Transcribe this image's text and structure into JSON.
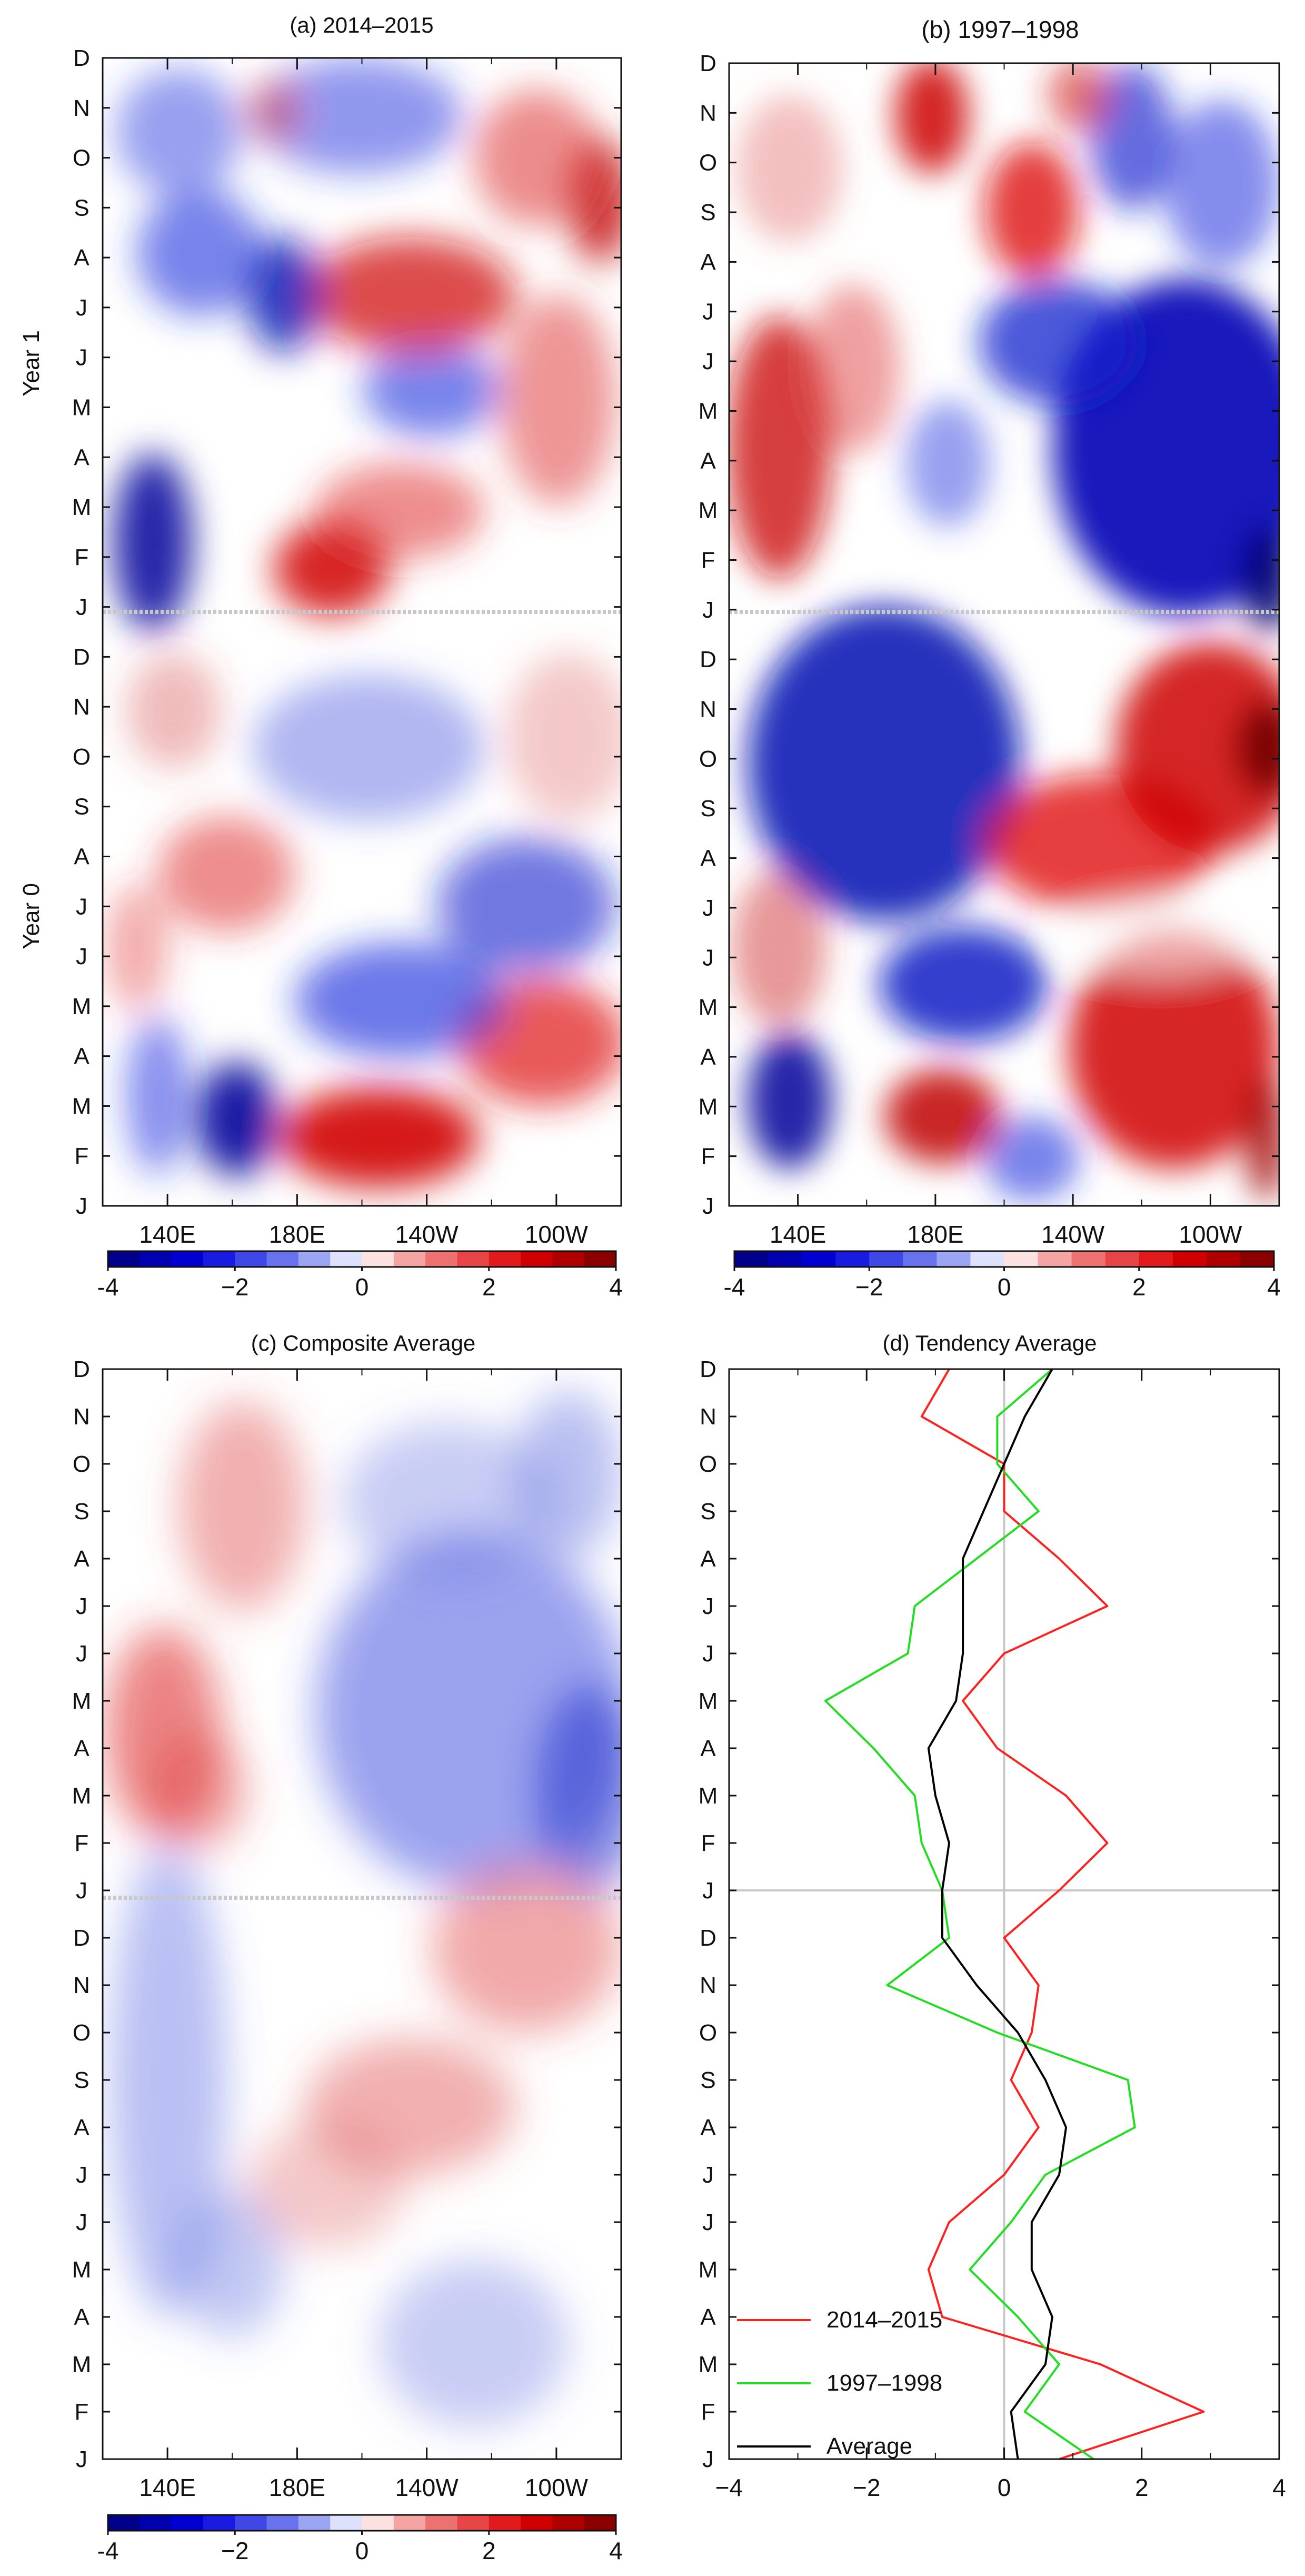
{
  "months": [
    "J",
    "F",
    "M",
    "A",
    "M",
    "J",
    "J",
    "A",
    "S",
    "O",
    "N",
    "D",
    "J",
    "F",
    "M",
    "A",
    "M",
    "J",
    "J",
    "A",
    "S",
    "O",
    "N",
    "D"
  ],
  "year_labels": {
    "year0": "Year 0",
    "year1": "Year 1"
  },
  "colors": {
    "neg": "#0000cc",
    "pos": "#cc0000",
    "neg_dark": "#00007a",
    "pos_dark": "#7a0000",
    "zero": "#ffffff",
    "divider": "#c8c8c8"
  },
  "chart_data": [
    {
      "type": "heatmap",
      "title": "(a) 2014–2015",
      "x_ticks": [
        "140E",
        "180E",
        "140W",
        "100W"
      ],
      "x_range_deg_east": [
        120,
        280
      ],
      "y_range_months": [
        0,
        23
      ],
      "colorbar": {
        "min": -4,
        "max": 4,
        "ticks": [
          "-4",
          "−2",
          "0",
          "2",
          "4"
        ]
      },
      "dominant_pattern": [
        {
          "region": "Year 0 Feb–Mar",
          "lon": "155–165E",
          "value": -3.5
        },
        {
          "region": "Year 0 Feb–Mar",
          "lon": "180–150W",
          "value": 3.5
        },
        {
          "region": "Year 0 Apr–Jun",
          "lon": "170E–130W",
          "value": -2.0
        },
        {
          "region": "Year 0 Apr–May",
          "lon": "120–90W",
          "value": 2.0
        },
        {
          "region": "Year 1 Feb–Apr",
          "lon": "130–145E",
          "value": -2.8
        },
        {
          "region": "Year 1 Feb",
          "lon": "175E–150W",
          "value": 3.0
        },
        {
          "region": "Year 1 Jun–Aug",
          "lon": "150W–120W",
          "value": 2.5
        },
        {
          "region": "Year 1 Jun",
          "lon": "170E–180E",
          "value": -2.5
        },
        {
          "region": "Year 1 Sep",
          "lon": "85–80W",
          "value": 3.0
        }
      ]
    },
    {
      "type": "heatmap",
      "title": "(b) 1997–1998",
      "x_ticks": [
        "140E",
        "180E",
        "140W",
        "100W"
      ],
      "x_range_deg_east": [
        120,
        280
      ],
      "y_range_months": [
        0,
        23
      ],
      "colorbar": {
        "min": -4,
        "max": 4,
        "ticks": [
          "-4",
          "−2",
          "0",
          "2",
          "4"
        ]
      },
      "dominant_pattern": [
        {
          "region": "Year 0 Feb–Mar",
          "lon": "135–145E",
          "value": -3.0
        },
        {
          "region": "Year 0 Mar",
          "lon": "175–185E",
          "value": 2.8
        },
        {
          "region": "Year 0 Jan–Apr",
          "lon": "130W–85W",
          "value": 3.0
        },
        {
          "region": "Year 0 Jul–Dec",
          "lon": "130–180E",
          "value": -3.0
        },
        {
          "region": "Year 0 Aug–Nov",
          "lon": "170W–80W",
          "value": 3.5
        },
        {
          "region": "Year 1 Jan–Jul",
          "lon": "160W–80W",
          "value": -3.5
        },
        {
          "region": "Year 1 Feb–May",
          "lon": "125–150E",
          "value": 2.8
        },
        {
          "region": "Year 1 Sep–Dec",
          "lon": "170E–150W",
          "value": 2.8
        }
      ]
    },
    {
      "type": "heatmap",
      "title": "(c) Composite Average",
      "x_ticks": [
        "140E",
        "180E",
        "140W",
        "100W"
      ],
      "x_range_deg_east": [
        120,
        280
      ],
      "y_range_months": [
        0,
        23
      ],
      "colorbar": {
        "min": -4,
        "max": 4,
        "ticks": [
          "-4",
          "−2",
          "0",
          "2",
          "4"
        ]
      },
      "dominant_pattern": [
        {
          "region": "Year 0 Feb–Jul",
          "lon": "130–170E",
          "value": -1.2
        },
        {
          "region": "Year 0 Jun–Aug",
          "lon": "170E–120W",
          "value": 1.5
        },
        {
          "region": "Year 0 Sep–Dec",
          "lon": "140W–85W",
          "value": 1.8
        },
        {
          "region": "Year 1 Feb–Jun",
          "lon": "125–150E",
          "value": 2.2
        },
        {
          "region": "Year 1 Feb–Sep",
          "lon": "170E–80W",
          "value": -1.8
        }
      ]
    },
    {
      "type": "line",
      "title": "(d) Tendency Average",
      "x_ticks": [
        "−4",
        "−2",
        "0",
        "2",
        "4"
      ],
      "xlim": [
        -4,
        4
      ],
      "ylim": [
        0,
        23
      ],
      "series": [
        {
          "name": "2014–2015",
          "color": "#ff2020",
          "x": [
            0.8,
            2.9,
            1.4,
            -0.9,
            -1.1,
            -0.8,
            0.0,
            0.5,
            0.1,
            0.4,
            0.5,
            0.0,
            0.8,
            1.5,
            0.9,
            -0.1,
            -0.6,
            0.0,
            1.5,
            0.8,
            0.0,
            0.0,
            -1.2,
            -0.8
          ]
        },
        {
          "name": "1997–1998",
          "color": "#22dd22",
          "x": [
            1.3,
            0.3,
            0.8,
            0.2,
            -0.5,
            0.1,
            0.6,
            1.9,
            1.8,
            -0.1,
            -1.7,
            -0.8,
            -0.9,
            -1.2,
            -1.3,
            -1.9,
            -2.6,
            -1.4,
            -1.3,
            -0.4,
            0.5,
            -0.1,
            -0.1,
            0.7
          ]
        },
        {
          "name": "Average",
          "color": "#000000",
          "x": [
            0.2,
            0.1,
            0.6,
            0.7,
            0.4,
            0.4,
            0.8,
            0.9,
            0.6,
            0.2,
            -0.4,
            -0.9,
            -0.9,
            -0.8,
            -1.0,
            -1.1,
            -0.7,
            -0.6,
            -0.6,
            -0.6,
            -0.3,
            0.0,
            0.3,
            0.7
          ]
        }
      ]
    }
  ]
}
